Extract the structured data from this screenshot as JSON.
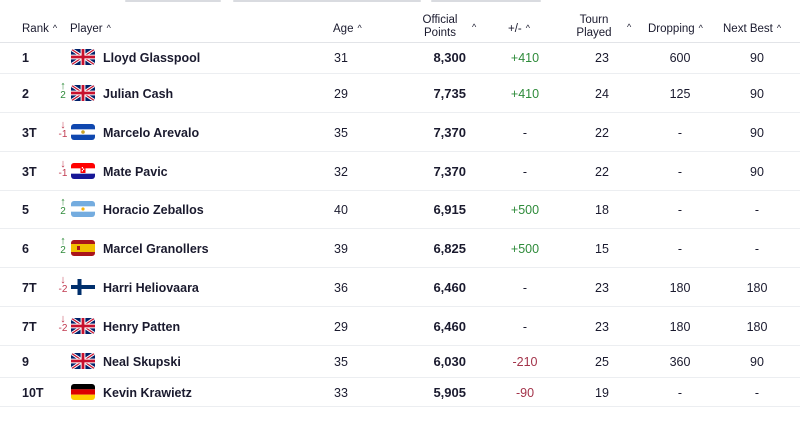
{
  "header": {
    "rank": "Rank",
    "player": "Player",
    "age": "Age",
    "points_line1": "Official",
    "points_line2": "Points",
    "plus_minus": "+/-",
    "tourn_line1": "Tourn",
    "tourn_line2": "Played",
    "dropping": "Dropping",
    "next_best": "Next Best",
    "sort_icon": "caret-up-icon"
  },
  "colors": {
    "positive": "#2e8b3a",
    "negative": "#a3334a",
    "text": "#1a1a2e",
    "divider": "#eceef1"
  },
  "rows": [
    {
      "rank": "1",
      "movement": "",
      "direction": "none",
      "flag": "gbr",
      "name": "Lloyd Glasspool",
      "age": "31",
      "points": "8,300",
      "plus_minus": "+410",
      "plus_minus_tone": "positive",
      "tourn_played": "23",
      "dropping": "600",
      "next_best": "90"
    },
    {
      "rank": "2",
      "movement": "2",
      "direction": "up",
      "flag": "gbr",
      "name": "Julian Cash",
      "age": "29",
      "points": "7,735",
      "plus_minus": "+410",
      "plus_minus_tone": "positive",
      "tourn_played": "24",
      "dropping": "125",
      "next_best": "90"
    },
    {
      "rank": "3T",
      "movement": "-1",
      "direction": "down",
      "flag": "esa",
      "name": "Marcelo Arevalo",
      "age": "35",
      "points": "7,370",
      "plus_minus": "-",
      "plus_minus_tone": "neutral",
      "tourn_played": "22",
      "dropping": "-",
      "next_best": "90"
    },
    {
      "rank": "3T",
      "movement": "-1",
      "direction": "down",
      "flag": "cro",
      "name": "Mate Pavic",
      "age": "32",
      "points": "7,370",
      "plus_minus": "-",
      "plus_minus_tone": "neutral",
      "tourn_played": "22",
      "dropping": "-",
      "next_best": "90"
    },
    {
      "rank": "5",
      "movement": "2",
      "direction": "up",
      "flag": "arg",
      "name": "Horacio Zeballos",
      "age": "40",
      "points": "6,915",
      "plus_minus": "+500",
      "plus_minus_tone": "positive",
      "tourn_played": "18",
      "dropping": "-",
      "next_best": "-"
    },
    {
      "rank": "6",
      "movement": "2",
      "direction": "up",
      "flag": "esp",
      "name": "Marcel Granollers",
      "age": "39",
      "points": "6,825",
      "plus_minus": "+500",
      "plus_minus_tone": "positive",
      "tourn_played": "15",
      "dropping": "-",
      "next_best": "-"
    },
    {
      "rank": "7T",
      "movement": "-2",
      "direction": "down",
      "flag": "fin",
      "name": "Harri Heliovaara",
      "age": "36",
      "points": "6,460",
      "plus_minus": "-",
      "plus_minus_tone": "neutral",
      "tourn_played": "23",
      "dropping": "180",
      "next_best": "180"
    },
    {
      "rank": "7T",
      "movement": "-2",
      "direction": "down",
      "flag": "gbr",
      "name": "Henry Patten",
      "age": "29",
      "points": "6,460",
      "plus_minus": "-",
      "plus_minus_tone": "neutral",
      "tourn_played": "23",
      "dropping": "180",
      "next_best": "180"
    },
    {
      "rank": "9",
      "movement": "",
      "direction": "none",
      "flag": "gbr",
      "name": "Neal Skupski",
      "age": "35",
      "points": "6,030",
      "plus_minus": "-210",
      "plus_minus_tone": "negative",
      "tourn_played": "25",
      "dropping": "360",
      "next_best": "90"
    },
    {
      "rank": "10T",
      "movement": "",
      "direction": "none",
      "flag": "ger",
      "name": "Kevin Krawietz",
      "age": "33",
      "points": "5,905",
      "plus_minus": "-90",
      "plus_minus_tone": "negative",
      "tourn_played": "19",
      "dropping": "-",
      "next_best": "-"
    }
  ]
}
